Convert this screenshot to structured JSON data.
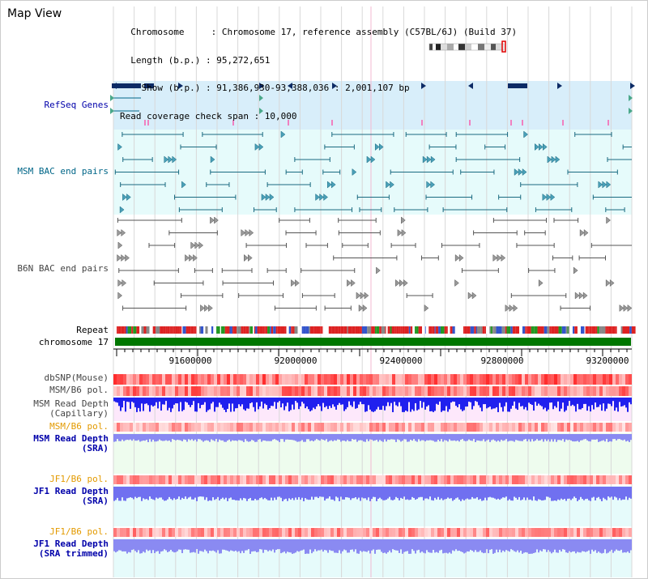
{
  "app": {
    "title": "Map View"
  },
  "info": {
    "lines": [
      "  Chromosome     : Chromosome 17, reference assembly (C57BL/6J) (Build 37)",
      "  Length (b.p.) : 95,272,651",
      "    Show (b.p.) : 91,386,930-93,388,036 : 2,001,107 bp",
      "Read coverage check span : 10,000"
    ]
  },
  "tracks": {
    "refseq": "RefSeq Genes",
    "msm_bac": "MSM BAC end pairs",
    "b6n_bac": "B6N BAC end pairs",
    "repeat": "Repeat",
    "chromosome": "chromosome 17",
    "dbsnp": "dbSNP(Mouse)",
    "msm_b6_pol": "MSM/B6 pol.",
    "msm_read_depth_cap": "MSM Read Depth\n(Capillary)",
    "msm_b6_pol2": "MSM/B6 pol.",
    "msm_read_depth_sra": "MSM Read Depth\n(SRA)",
    "jf1_b6_pol": "JF1/B6 pol.",
    "jf1_read_depth_sra": "JF1 Read Depth\n(SRA)",
    "jf1_b6_pol2": "JF1/B6 pol.",
    "jf1_read_depth_trim": "JF1 Read Depth\n(SRA trimmed)"
  },
  "axis": {
    "ticks": [
      "91600000",
      "92000000",
      "92400000",
      "92800000",
      "93200000"
    ]
  },
  "colors": {
    "refseq": "#0000aa",
    "msm": "#006688",
    "b6n": "#444444",
    "orange": "#e39a00",
    "chromosome": "#007700",
    "depth_blue": "#2a2aee"
  }
}
